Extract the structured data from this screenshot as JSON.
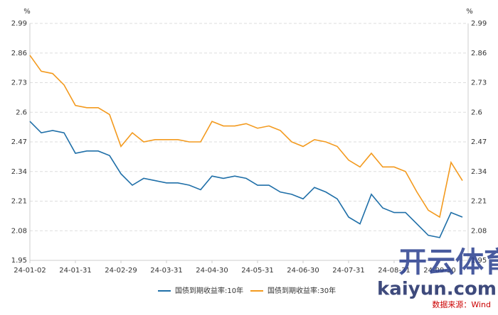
{
  "chart_data": {
    "type": "line",
    "unit": "%",
    "categories": [
      "24-01-02",
      null,
      null,
      null,
      "24-01-31",
      null,
      null,
      null,
      "24-02-29",
      null,
      null,
      null,
      "24-03-31",
      null,
      null,
      null,
      "24-04-30",
      null,
      null,
      null,
      "24-05-31",
      null,
      null,
      null,
      "24-06-30",
      null,
      null,
      null,
      "24-07-31",
      null,
      null,
      null,
      "24-08-31",
      null,
      null,
      null,
      "24-09-30",
      null,
      null
    ],
    "series": [
      {
        "name": "国债到期收益率:10年",
        "color": "#1f6fa8",
        "values": [
          2.56,
          2.51,
          2.52,
          2.51,
          2.42,
          2.43,
          2.43,
          2.41,
          2.33,
          2.28,
          2.31,
          2.3,
          2.29,
          2.29,
          2.28,
          2.26,
          2.32,
          2.31,
          2.32,
          2.31,
          2.28,
          2.28,
          2.25,
          2.24,
          2.22,
          2.27,
          2.25,
          2.22,
          2.14,
          2.11,
          2.24,
          2.18,
          2.16,
          2.16,
          2.11,
          2.06,
          2.05,
          2.16,
          2.14
        ]
      },
      {
        "name": "国债到期收益率:30年",
        "color": "#f39a1e",
        "values": [
          2.85,
          2.78,
          2.77,
          2.72,
          2.63,
          2.62,
          2.62,
          2.59,
          2.45,
          2.51,
          2.47,
          2.48,
          2.48,
          2.48,
          2.47,
          2.47,
          2.56,
          2.54,
          2.54,
          2.55,
          2.53,
          2.54,
          2.52,
          2.47,
          2.45,
          2.48,
          2.47,
          2.45,
          2.39,
          2.36,
          2.42,
          2.36,
          2.36,
          2.34,
          2.25,
          2.17,
          2.14,
          2.38,
          2.3
        ]
      }
    ],
    "ylim": [
      1.95,
      2.99
    ],
    "yticks": [
      1.95,
      2.08,
      2.21,
      2.34,
      2.47,
      2.6,
      2.73,
      2.86,
      2.99
    ],
    "grid": true,
    "legend": "bottom",
    "source": "数据来源：Wind",
    "watermark": [
      "开云体育",
      "kaiyun.com"
    ]
  }
}
